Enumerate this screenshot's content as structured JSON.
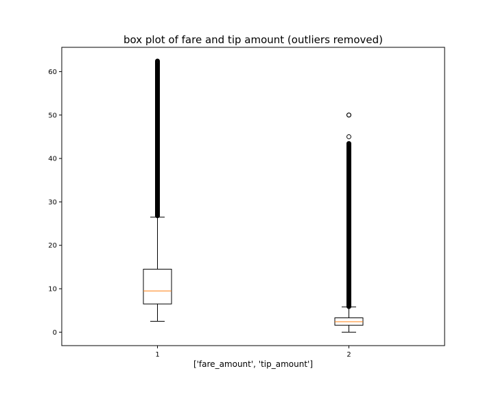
{
  "chart_data": {
    "type": "box",
    "title": "box plot of fare and tip amount (outliers removed)",
    "xlabel": "['fare_amount', 'tip_amount']",
    "ylabel": "",
    "categories": [
      "1",
      "2"
    ],
    "ylim": [
      -3.1,
      65.6
    ],
    "yticks": [
      0,
      10,
      20,
      30,
      40,
      50,
      60
    ],
    "grid": false,
    "boxes": [
      {
        "label": "1",
        "whisker_low": 2.5,
        "q1": 6.5,
        "median": 9.5,
        "q3": 14.5,
        "whisker_high": 26.5,
        "fliers_range": [
          26.8,
          62.5
        ]
      },
      {
        "label": "2",
        "whisker_low": 0,
        "q1": 1.6,
        "median": 2.4,
        "q3": 3.3,
        "whisker_high": 5.8,
        "fliers_range": [
          5.9,
          43.5
        ],
        "fliers_extra": [
          45,
          50,
          50
        ]
      }
    ],
    "colors": {
      "box": "#000000",
      "median": "#ff7f0e",
      "flier": "#000000"
    }
  }
}
